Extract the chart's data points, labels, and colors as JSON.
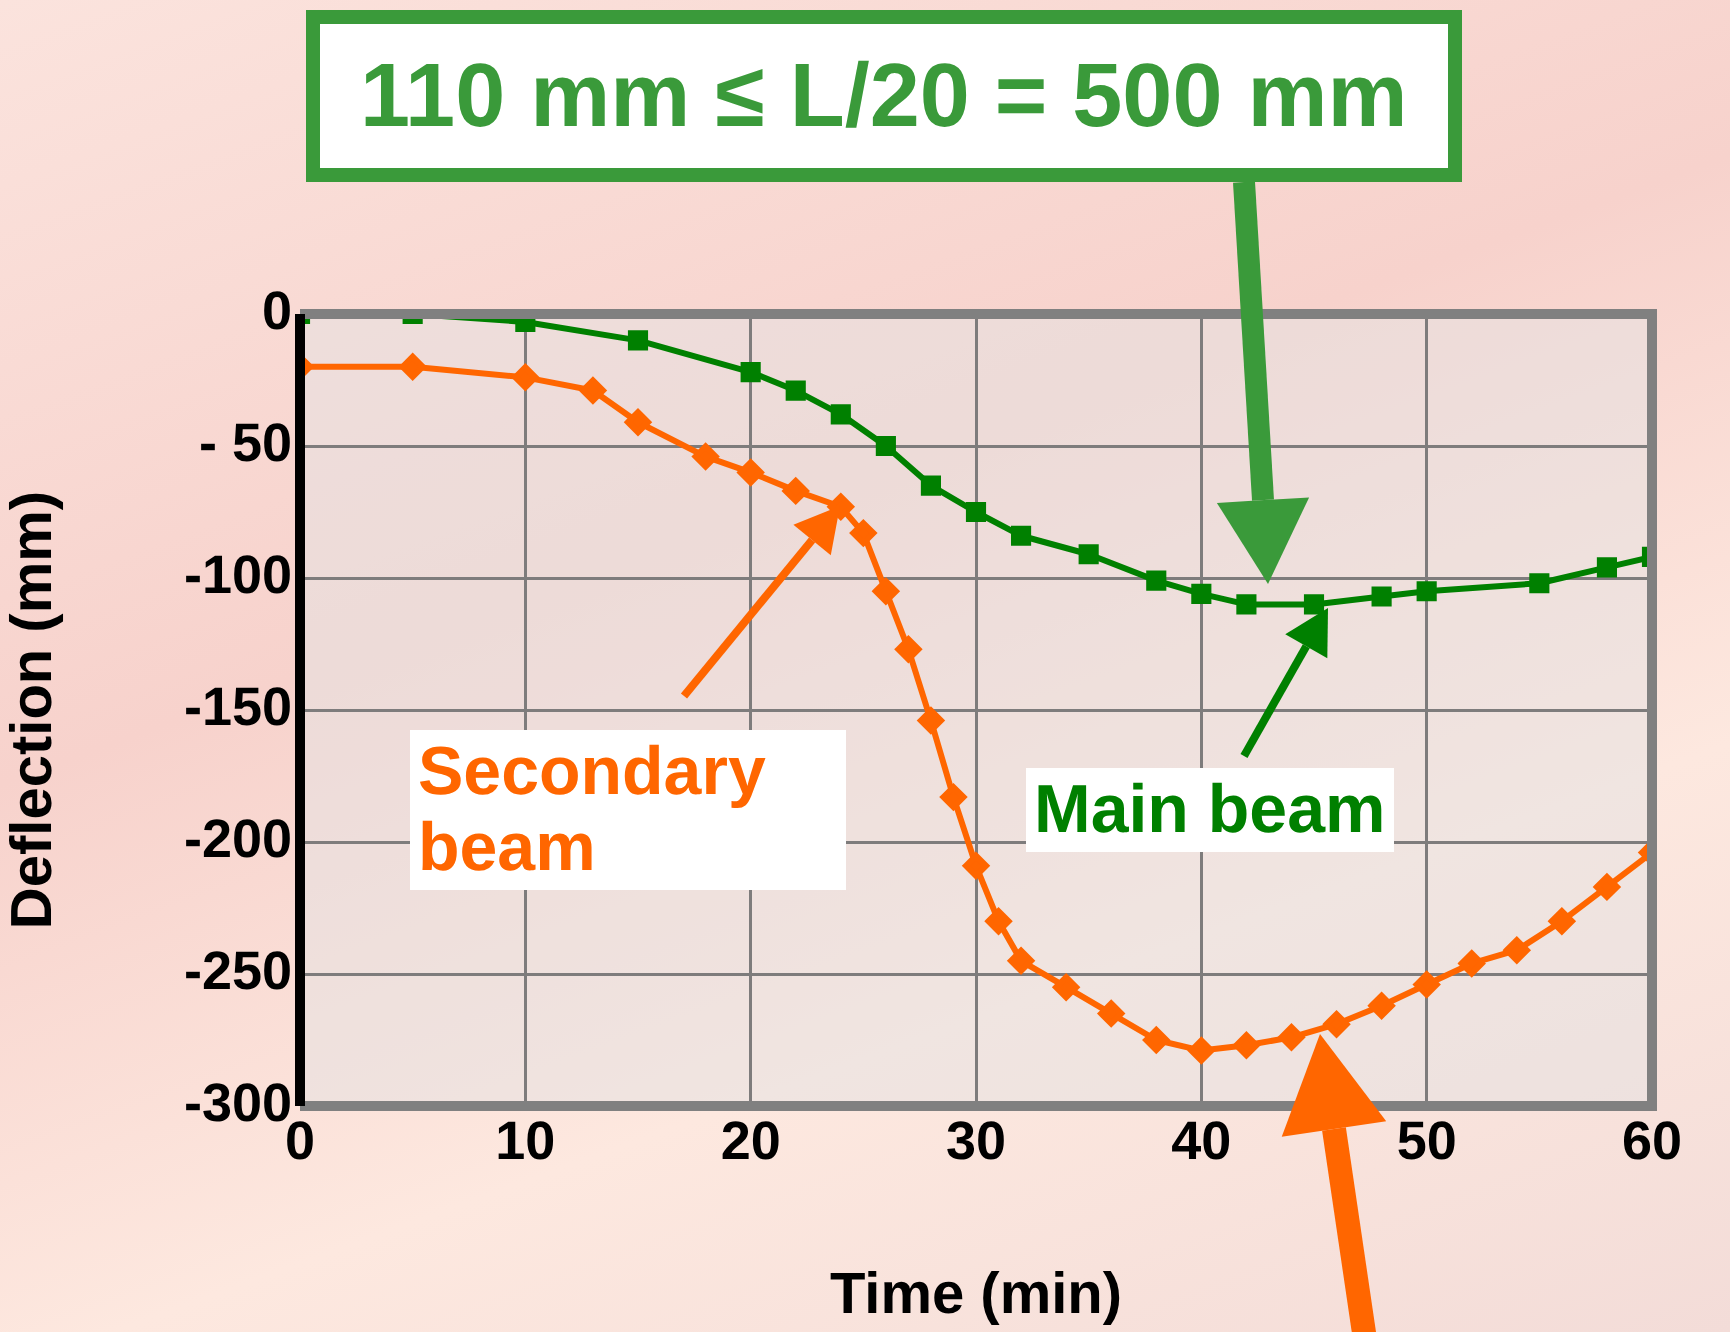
{
  "chart_data": {
    "type": "line",
    "xlabel": "Time (min)",
    "ylabel": "Deflection (mm)",
    "xlim": [
      0,
      60
    ],
    "xticks": [
      0,
      10,
      20,
      30,
      40,
      50,
      60
    ],
    "ylim": [
      -300,
      0
    ],
    "yticks": [
      0,
      {
        "value": -50,
        "label": "- 50"
      },
      -100,
      -150,
      -200,
      -250,
      -300
    ],
    "grid": true,
    "legend": false,
    "series": [
      {
        "color": "#008000",
        "marker": "square",
        "x": [
          0,
          5,
          10,
          15,
          20,
          22,
          24,
          26,
          28,
          30,
          32,
          35,
          38,
          40,
          42,
          45,
          48,
          50,
          55,
          58,
          60
        ],
        "values": [
          0,
          0,
          -3,
          -10,
          -22,
          -29,
          -38,
          -50,
          -65,
          -75,
          -84,
          -91,
          -101,
          -106,
          -110,
          -110,
          -107,
          -105,
          -102,
          -96,
          -92
        ]
      },
      {
        "color": "#ff6600",
        "marker": "diamond",
        "x": [
          0,
          5,
          10,
          13,
          15,
          18,
          20,
          22,
          24,
          25,
          26,
          27,
          28,
          29,
          30,
          31,
          32,
          34,
          36,
          38,
          40,
          42,
          44,
          46,
          48,
          50,
          52,
          54,
          56,
          58,
          60
        ],
        "values": [
          -20,
          -20,
          -24,
          -29,
          -41,
          -54,
          -60,
          -67,
          -73,
          -83,
          -105,
          -127,
          -154,
          -183,
          -209,
          -230,
          -245,
          -255,
          -265,
          -275,
          -279,
          -277,
          -274,
          -269,
          -262,
          -254,
          -246,
          -241,
          -230,
          -217,
          -204
        ]
      }
    ],
    "annotations": [
      "110 mm ≤ L/20 = 500 mm",
      "Secondary beam",
      "Main beam"
    ]
  }
}
